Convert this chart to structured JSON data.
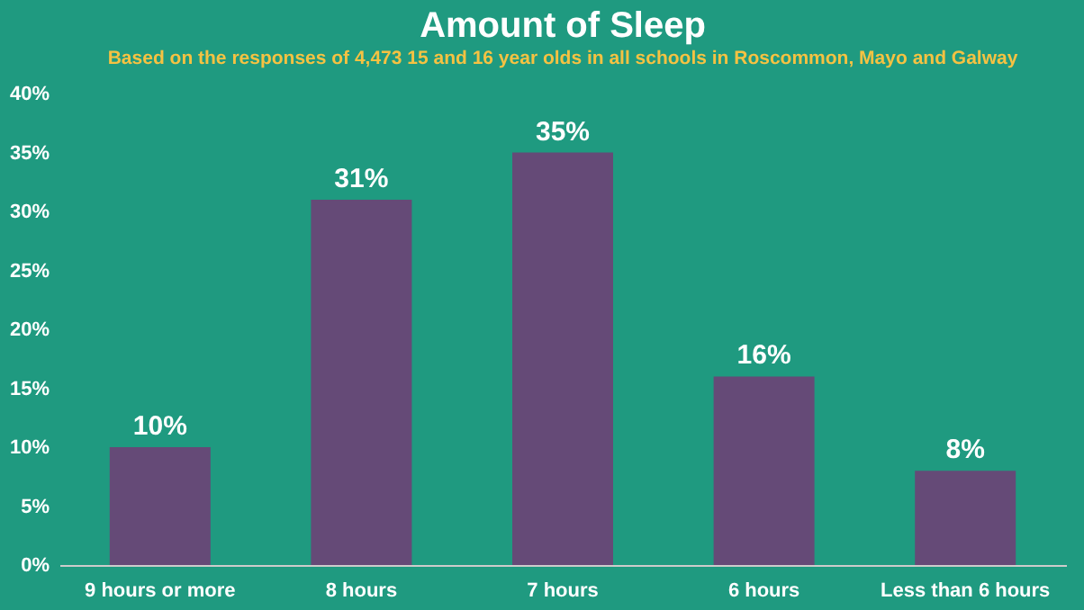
{
  "chart_data": {
    "type": "bar",
    "title": "Amount of Sleep",
    "subtitle": "Based on the responses of 4,473 15 and 16 year olds in all schools in Roscommon, Mayo  and Galway",
    "categories": [
      "9 hours or more",
      "8 hours",
      "7 hours",
      "6 hours",
      "Less than 6 hours"
    ],
    "values": [
      10,
      31,
      35,
      16,
      8
    ],
    "value_labels": [
      "10%",
      "31%",
      "35%",
      "16%",
      "8%"
    ],
    "color": "#654a77",
    "ylim": [
      0,
      40
    ],
    "yticks": [
      {
        "value": 0,
        "label": "0%"
      },
      {
        "value": 5,
        "label": "5%"
      },
      {
        "value": 10,
        "label": "10%"
      },
      {
        "value": 15,
        "label": "15%"
      },
      {
        "value": 20,
        "label": "20%"
      },
      {
        "value": 25,
        "label": "25%"
      },
      {
        "value": 30,
        "label": "30%"
      },
      {
        "value": 35,
        "label": "35%"
      },
      {
        "value": 40,
        "label": "40%"
      }
    ],
    "grid": false
  }
}
